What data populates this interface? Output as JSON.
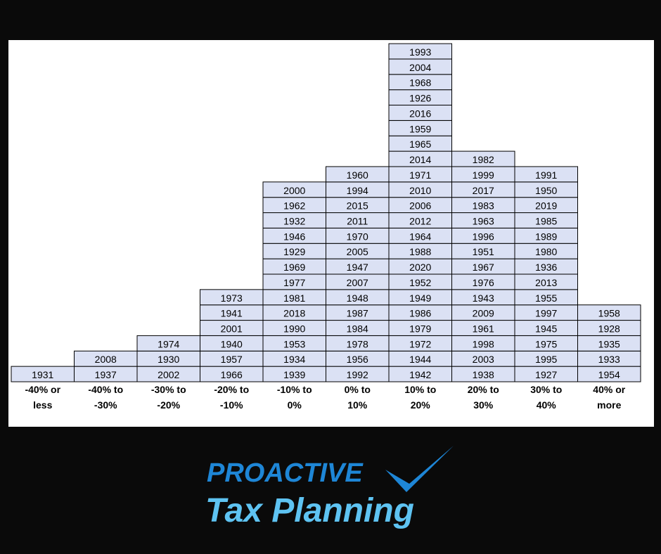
{
  "columns": [
    {
      "label": [
        "-40% or",
        "less"
      ],
      "years": [
        1931
      ]
    },
    {
      "label": [
        "-40% to",
        "-30%"
      ],
      "years": [
        1937,
        2008
      ]
    },
    {
      "label": [
        "-30% to",
        "-20%"
      ],
      "years": [
        2002,
        1930,
        1974
      ]
    },
    {
      "label": [
        "-20% to",
        "-10%"
      ],
      "years": [
        1966,
        1957,
        1940,
        2001,
        1941,
        1973
      ]
    },
    {
      "label": [
        "-10% to",
        "0%"
      ],
      "years": [
        1939,
        1934,
        1953,
        1990,
        2018,
        1981,
        1977,
        1969,
        1929,
        1946,
        1932,
        1962,
        2000
      ]
    },
    {
      "label": [
        "0% to",
        "10%"
      ],
      "years": [
        1992,
        1956,
        1978,
        1984,
        1987,
        1948,
        2007,
        1947,
        2005,
        1970,
        2011,
        2015,
        1994,
        1960
      ]
    },
    {
      "label": [
        "10% to",
        "20%"
      ],
      "years": [
        1942,
        1944,
        1972,
        1979,
        1986,
        1949,
        1952,
        2020,
        1988,
        1964,
        2012,
        2006,
        2010,
        1971,
        2014,
        1965,
        1959,
        2016,
        1926,
        1968,
        2004,
        1993
      ]
    },
    {
      "label": [
        "20% to",
        "30%"
      ],
      "years": [
        1938,
        2003,
        1998,
        1961,
        2009,
        1943,
        1976,
        1967,
        1951,
        1996,
        1963,
        1983,
        2017,
        1999,
        1982
      ]
    },
    {
      "label": [
        "30% to",
        "40%"
      ],
      "years": [
        1927,
        1995,
        1975,
        1945,
        1997,
        1955,
        2013,
        1936,
        1980,
        1989,
        1985,
        2019,
        1950,
        1991
      ]
    },
    {
      "label": [
        "40% or",
        "more"
      ],
      "years": [
        1954,
        1933,
        1935,
        1928,
        1958
      ]
    }
  ],
  "logo": {
    "line1": "PROACTIVE",
    "line2": "Tax Planning"
  }
}
